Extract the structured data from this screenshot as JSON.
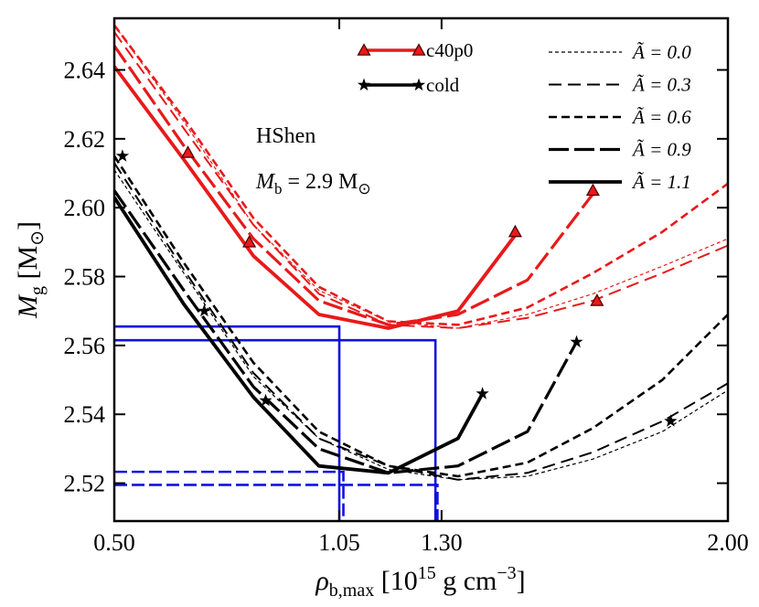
{
  "chart_data": {
    "type": "line",
    "xlim": [
      0.5,
      2.0
    ],
    "ylim": [
      2.509,
      2.655
    ],
    "xticks": [
      {
        "value": 0.5,
        "label": "0.50"
      },
      {
        "value": 1.05,
        "label": "1.05"
      },
      {
        "value": 1.3,
        "label": "1.30"
      },
      {
        "value": 2.0,
        "label": "2.00"
      }
    ],
    "yticks": [
      2.52,
      2.54,
      2.56,
      2.58,
      {
        "value": 2.6,
        "label": "2.60"
      },
      2.62,
      2.64
    ],
    "xlabel": [
      "ρ",
      "b,max",
      " [10",
      "15",
      " g cm",
      "−3",
      "]"
    ],
    "ylabel": [
      "M",
      "g",
      " [M",
      "⊙",
      "]"
    ],
    "annotations": {
      "eos": "HShen",
      "mass": [
        "M",
        "b",
        " = 2.9 M",
        "⊙"
      ]
    },
    "models": [
      {
        "name": "c40p0",
        "color": "#e8191a",
        "marker": "triangle"
      },
      {
        "name": "cold",
        "color": "#000000",
        "marker": "star"
      }
    ],
    "line_styles": [
      {
        "label": "Ã = 0.0",
        "A": 0.0,
        "dash": "4,3",
        "width": 1.2
      },
      {
        "label": "Ã = 0.3",
        "A": 0.3,
        "dash": "14,7",
        "width": 2
      },
      {
        "label": "Ã = 0.6",
        "A": 0.6,
        "dash": "9,5",
        "width": 2.6
      },
      {
        "label": "Ã = 0.9",
        "A": 0.9,
        "dash": "22,6",
        "width": 3.2
      },
      {
        "label": "Ã = 1.1",
        "A": 1.1,
        "dash": null,
        "width": 3.8
      }
    ],
    "series": [
      {
        "model": "c40p0",
        "A": 0.0,
        "x": [
          0.5,
          0.67,
          0.84,
          1.0,
          1.17,
          1.34,
          1.51,
          1.67,
          1.84,
          2.0
        ],
        "values": [
          2.653,
          2.625,
          2.595,
          2.576,
          2.567,
          2.565,
          2.569,
          2.575,
          2.583,
          2.591
        ]
      },
      {
        "model": "c40p0",
        "A": 0.3,
        "x": [
          0.5,
          0.67,
          0.84,
          1.0,
          1.17,
          1.34,
          1.51,
          1.67,
          1.84,
          2.0
        ],
        "values": [
          2.651,
          2.623,
          2.595,
          2.575,
          2.566,
          2.565,
          2.568,
          2.573,
          2.581,
          2.589
        ]
      },
      {
        "model": "c40p0",
        "A": 0.6,
        "x": [
          0.5,
          0.67,
          0.84,
          1.0,
          1.17,
          1.34,
          1.51,
          1.67,
          1.84,
          2.0
        ],
        "values": [
          2.653,
          2.626,
          2.597,
          2.577,
          2.567,
          2.566,
          2.571,
          2.581,
          2.593,
          2.607
        ]
      },
      {
        "model": "c40p0",
        "A": 0.9,
        "x": [
          0.5,
          0.67,
          0.84,
          1.0,
          1.17,
          1.34,
          1.51,
          1.67
        ],
        "values": [
          2.647,
          2.618,
          2.591,
          2.573,
          2.566,
          2.569,
          2.579,
          2.604
        ]
      },
      {
        "model": "c40p0",
        "A": 1.1,
        "x": [
          0.5,
          0.67,
          0.84,
          1.0,
          1.17,
          1.34,
          1.48
        ],
        "values": [
          2.641,
          2.614,
          2.586,
          2.569,
          2.565,
          2.57,
          2.592
        ]
      },
      {
        "model": "cold",
        "A": 0.0,
        "x": [
          0.5,
          0.67,
          0.84,
          1.0,
          1.17,
          1.34,
          1.51,
          1.67,
          1.84,
          2.0
        ],
        "values": [
          2.611,
          2.581,
          2.551,
          2.533,
          2.524,
          2.521,
          2.522,
          2.527,
          2.535,
          2.547
        ]
      },
      {
        "model": "cold",
        "A": 0.3,
        "x": [
          0.5,
          0.67,
          0.84,
          1.0,
          1.17,
          1.34,
          1.51,
          1.67,
          1.84,
          2.0
        ],
        "values": [
          2.613,
          2.582,
          2.552,
          2.533,
          2.525,
          2.521,
          2.523,
          2.529,
          2.538,
          2.549
        ]
      },
      {
        "model": "cold",
        "A": 0.6,
        "x": [
          0.5,
          0.67,
          0.84,
          1.0,
          1.17,
          1.34,
          1.51,
          1.67,
          1.84,
          2.0
        ],
        "values": [
          2.615,
          2.584,
          2.555,
          2.535,
          2.525,
          2.522,
          2.526,
          2.536,
          2.55,
          2.569
        ]
      },
      {
        "model": "cold",
        "A": 0.9,
        "x": [
          0.5,
          0.67,
          0.84,
          1.0,
          1.17,
          1.34,
          1.51,
          1.63
        ],
        "values": [
          2.605,
          2.576,
          2.548,
          2.53,
          2.523,
          2.525,
          2.535,
          2.561
        ]
      },
      {
        "model": "cold",
        "A": 1.1,
        "x": [
          0.5,
          0.67,
          0.84,
          1.0,
          1.17,
          1.34,
          1.4
        ],
        "values": [
          2.603,
          2.572,
          2.545,
          2.525,
          2.523,
          2.533,
          2.546
        ]
      }
    ],
    "markers": [
      {
        "model": "c40p0",
        "x": [
          0.68,
          0.83,
          1.48,
          1.67,
          1.68
        ],
        "values": [
          2.616,
          2.59,
          2.593,
          2.605,
          2.573
        ]
      },
      {
        "model": "cold",
        "x": [
          0.52,
          0.72,
          0.87,
          1.4,
          1.63,
          1.86
        ],
        "values": [
          2.615,
          2.57,
          2.544,
          2.546,
          2.561,
          2.538
        ]
      }
    ],
    "guides": {
      "color": "#1010e0",
      "lines": [
        {
          "x": 1.05,
          "y": 2.5655,
          "dash": null
        },
        {
          "x": 1.285,
          "y": 2.5615,
          "dash": null
        },
        {
          "x": 1.06,
          "y": 2.5233,
          "dash": "14,5"
        },
        {
          "x": 1.29,
          "y": 2.5195,
          "dash": "14,5"
        }
      ]
    }
  }
}
